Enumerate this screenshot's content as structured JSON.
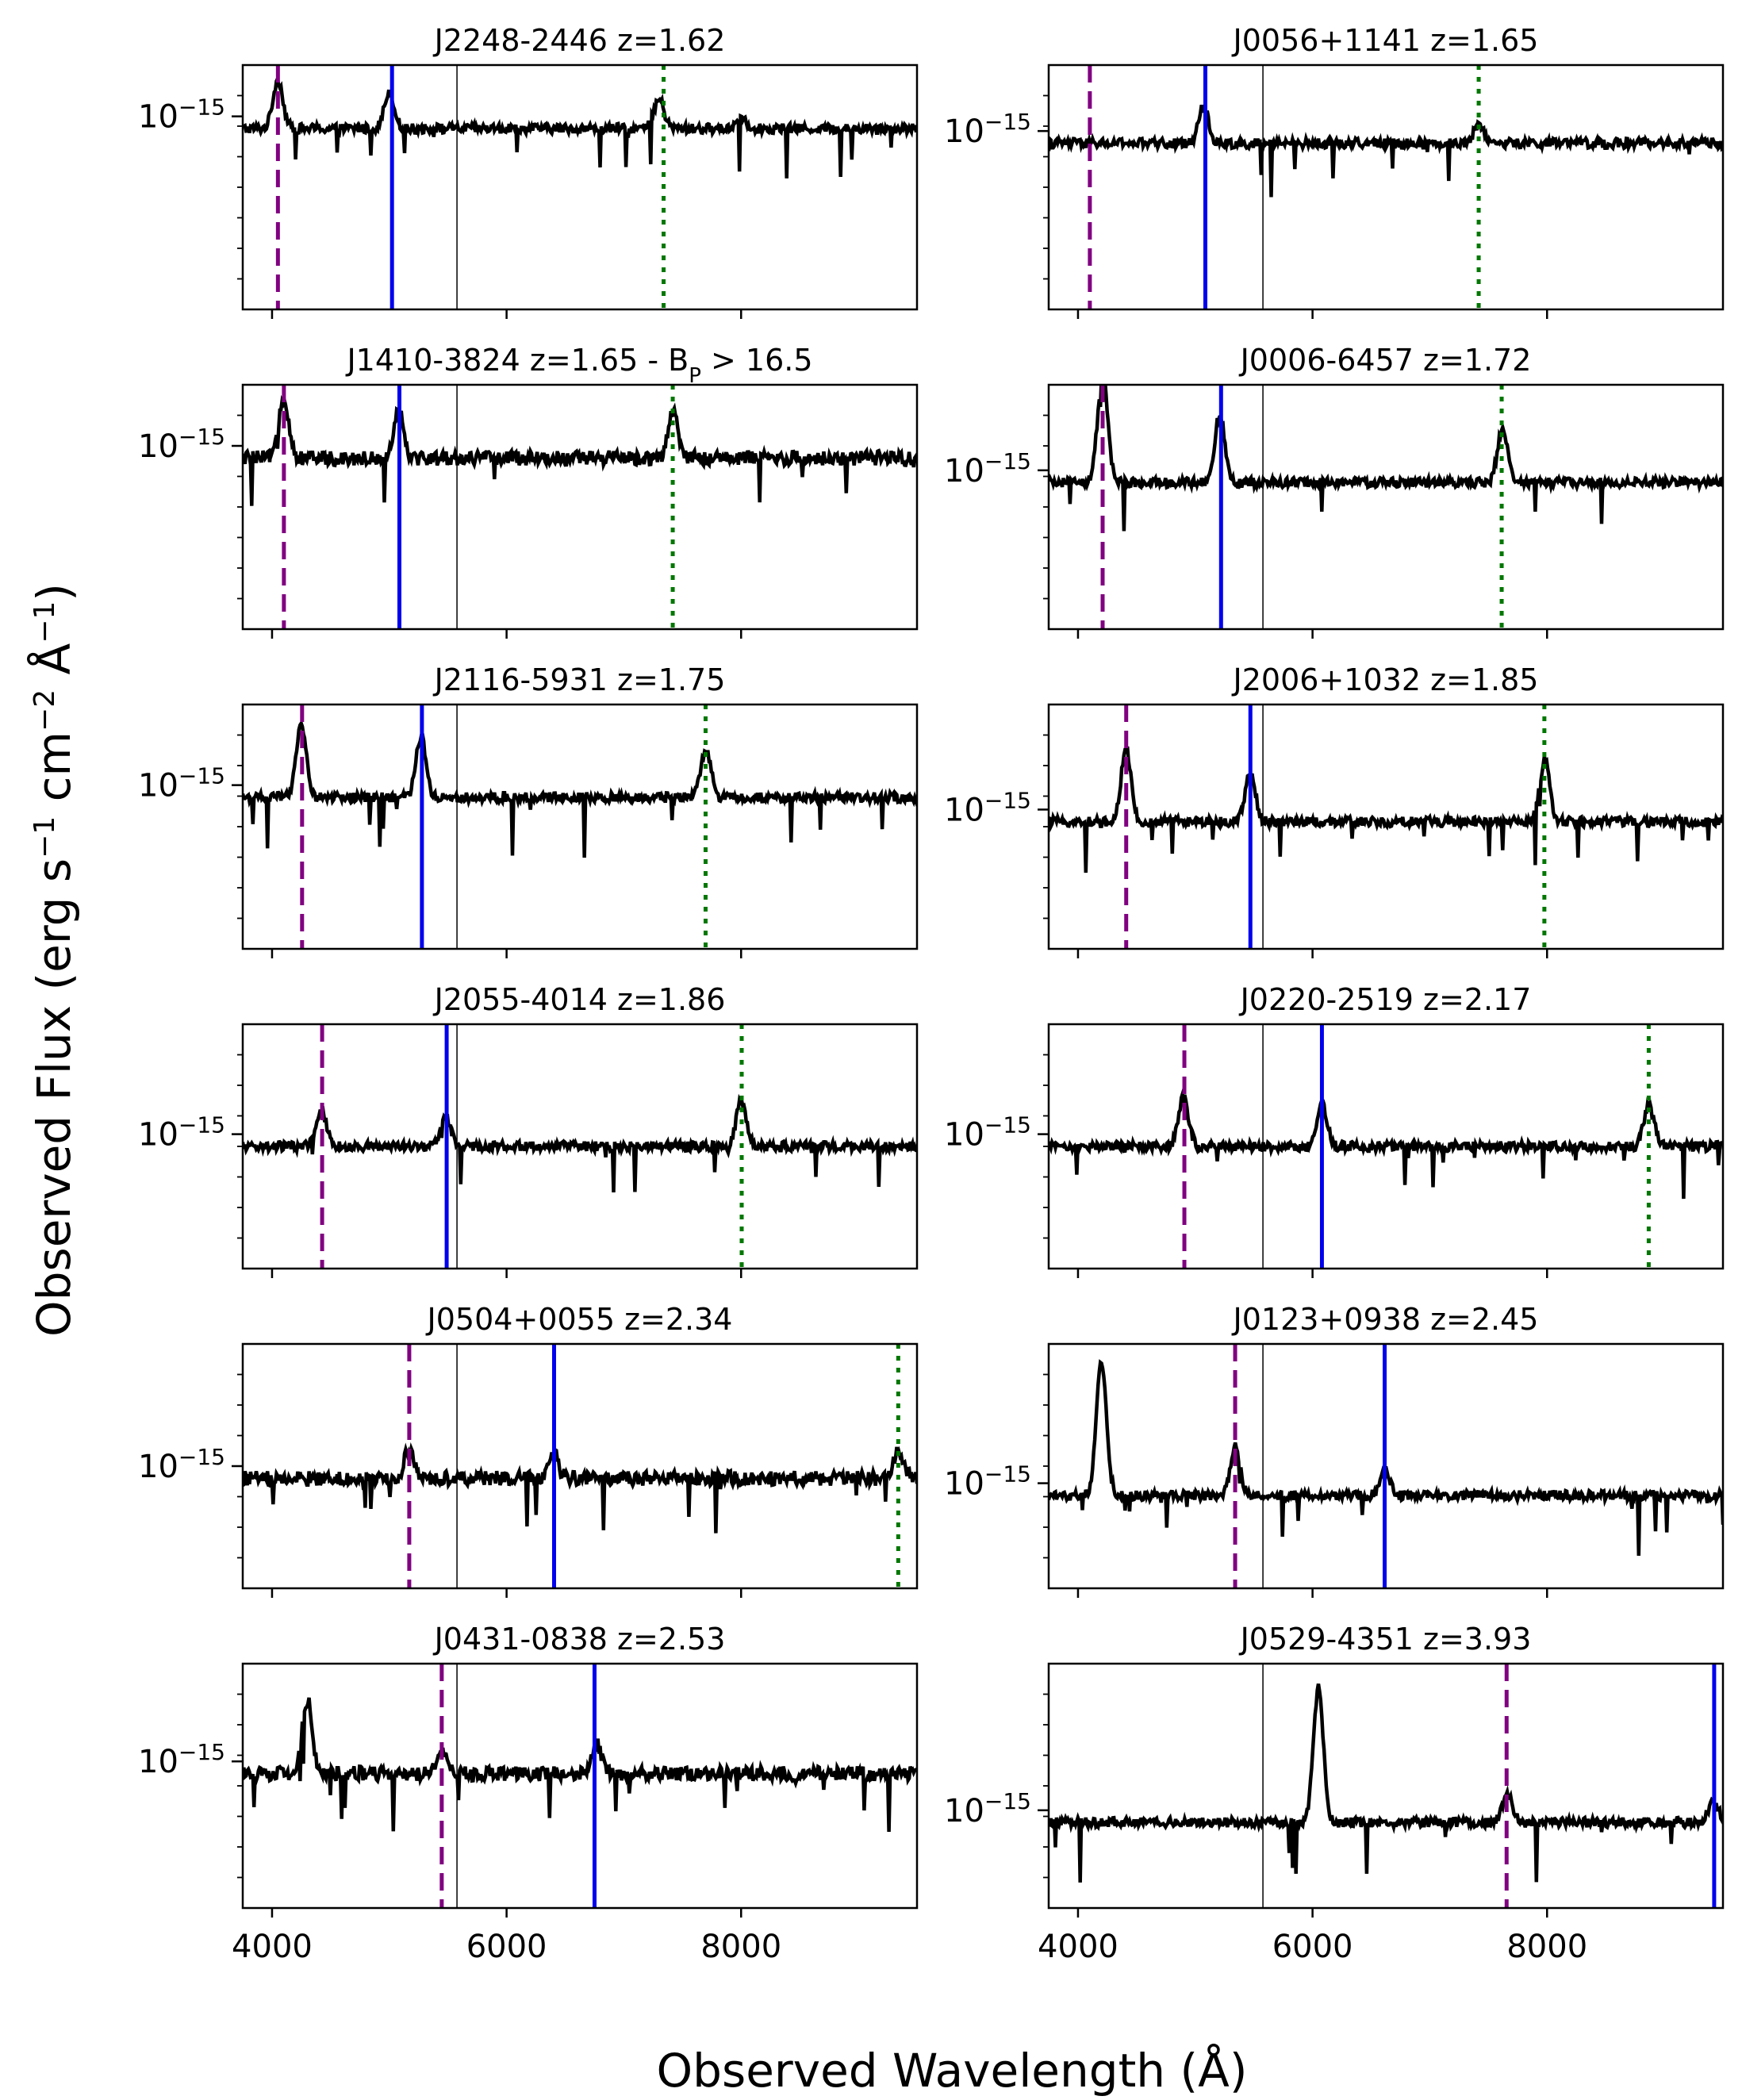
{
  "figure": {
    "xlabel": "Observed Wavelength (Å)",
    "ylabel": "Observed Flux (erg s",
    "ylabel_sup1": "−1",
    "ylabel_mid": " cm",
    "ylabel_sup2": "−2",
    "ylabel_mid2": " Å",
    "ylabel_sup3": "−1",
    "ylabel_end": ")",
    "colors": {
      "spectrum": "#000000",
      "dashed_line": "#800080",
      "solid_line": "#0000ee",
      "dotted_line": "#007700",
      "reference_line": "#000000"
    }
  },
  "chart_data": [
    {
      "type": "line",
      "title": "J2248-2446 z=1.62",
      "xlim": [
        3750,
        9500
      ],
      "ylevel": 0.74,
      "noise": 0.02,
      "features": [
        [
          4050,
          0.2
        ],
        [
          5000,
          0.15
        ],
        [
          7300,
          0.12
        ],
        [
          8000,
          0.05
        ]
      ],
      "lines": {
        "dashed": 4050,
        "solid": 5023,
        "dotted": 7339
      }
    },
    {
      "type": "line",
      "title": "J0056+1141 z=1.65",
      "xlim": [
        3750,
        9500
      ],
      "ylevel": 0.68,
      "noise": 0.02,
      "features": [
        [
          5070,
          0.15
        ],
        [
          7420,
          0.08
        ]
      ],
      "lines": {
        "dashed": 4101,
        "solid": 5086,
        "dotted": 7417
      }
    },
    {
      "type": "line",
      "title": "J1410-3824 z=1.65",
      "title_suffix": "  - B",
      "title_sub": "P",
      "title_tail": " > 16.5",
      "xlim": [
        3750,
        9500
      ],
      "ylevel": 0.7,
      "noise": 0.03,
      "features": [
        [
          4100,
          0.25
        ],
        [
          5080,
          0.2
        ],
        [
          7420,
          0.18
        ]
      ],
      "lines": {
        "dashed": 4101,
        "solid": 5086,
        "dotted": 7417
      }
    },
    {
      "type": "line",
      "title": "J0006-6457 z=1.72",
      "xlim": [
        3750,
        9500
      ],
      "ylevel": 0.6,
      "noise": 0.02,
      "features": [
        [
          4210,
          0.45
        ],
        [
          5210,
          0.28
        ],
        [
          7620,
          0.22
        ]
      ],
      "lines": {
        "dashed": 4210,
        "solid": 5220,
        "dotted": 7613
      }
    },
    {
      "type": "line",
      "title": "J2116-5931 z=1.75",
      "xlim": [
        3750,
        9500
      ],
      "ylevel": 0.62,
      "noise": 0.02,
      "features": [
        [
          4250,
          0.3
        ],
        [
          5270,
          0.25
        ],
        [
          7700,
          0.2
        ]
      ],
      "lines": {
        "dashed": 4256,
        "solid": 5278,
        "dotted": 7697
      }
    },
    {
      "type": "line",
      "title": "J2006+1032 z=1.85",
      "xlim": [
        3750,
        9500
      ],
      "ylevel": 0.52,
      "noise": 0.02,
      "features": [
        [
          4410,
          0.3
        ],
        [
          5470,
          0.2
        ],
        [
          7980,
          0.25
        ]
      ],
      "lines": {
        "dashed": 4411,
        "solid": 5470,
        "dotted": 7977
      }
    },
    {
      "type": "line",
      "title": "J2055-4014 z=1.86",
      "xlim": [
        3750,
        9500
      ],
      "ylevel": 0.5,
      "noise": 0.02,
      "features": [
        [
          4420,
          0.15
        ],
        [
          5480,
          0.12
        ],
        [
          8000,
          0.18
        ]
      ],
      "lines": {
        "dashed": 4427,
        "solid": 5489,
        "dotted": 8005
      }
    },
    {
      "type": "line",
      "title": "J0220-2519 z=2.17",
      "xlim": [
        3750,
        9500
      ],
      "ylevel": 0.5,
      "noise": 0.02,
      "features": [
        [
          4900,
          0.2
        ],
        [
          6080,
          0.18
        ],
        [
          8870,
          0.18
        ]
      ],
      "lines": {
        "dashed": 4907,
        "solid": 6080,
        "dotted": 8867
      }
    },
    {
      "type": "line",
      "title": "J0504+0055 z=2.34",
      "xlim": [
        3750,
        9500
      ],
      "ylevel": 0.45,
      "noise": 0.03,
      "features": [
        [
          5170,
          0.12
        ],
        [
          6400,
          0.1
        ],
        [
          9340,
          0.12
        ]
      ],
      "lines": {
        "dashed": 5170,
        "solid": 6405,
        "dotted": 9340
      }
    },
    {
      "type": "line",
      "title": "J0123+0938 z=2.45",
      "xlim": [
        3750,
        9500
      ],
      "ylevel": 0.38,
      "noise": 0.02,
      "features": [
        [
          4200,
          0.55
        ],
        [
          5340,
          0.2
        ],
        [
          6620,
          0.1
        ]
      ],
      "lines": {
        "dashed": 5340,
        "solid": 6615
      }
    },
    {
      "type": "line",
      "title": "J0431-0838 z=2.53",
      "xlim": [
        3750,
        9500
      ],
      "ylevel": 0.55,
      "noise": 0.03,
      "features": [
        [
          4300,
          0.3
        ],
        [
          5460,
          0.1
        ],
        [
          6770,
          0.12
        ]
      ],
      "lines": {
        "dashed": 5447,
        "solid": 6750
      }
    },
    {
      "type": "line",
      "title": "J0529-4351 z=3.93",
      "xlim": [
        3750,
        9500
      ],
      "ylevel": 0.35,
      "noise": 0.02,
      "features": [
        [
          6050,
          0.55
        ],
        [
          7660,
          0.12
        ],
        [
          9420,
          0.08
        ]
      ],
      "lines": {
        "dashed": 7655,
        "solid": 9425
      }
    }
  ],
  "axes": {
    "ytick_base": "10",
    "ytick_exp": "−15",
    "xticks": [
      4000,
      6000,
      8000
    ],
    "xtick_labels": [
      "4000",
      "6000",
      "8000"
    ],
    "reference_wavelength": 5577
  }
}
